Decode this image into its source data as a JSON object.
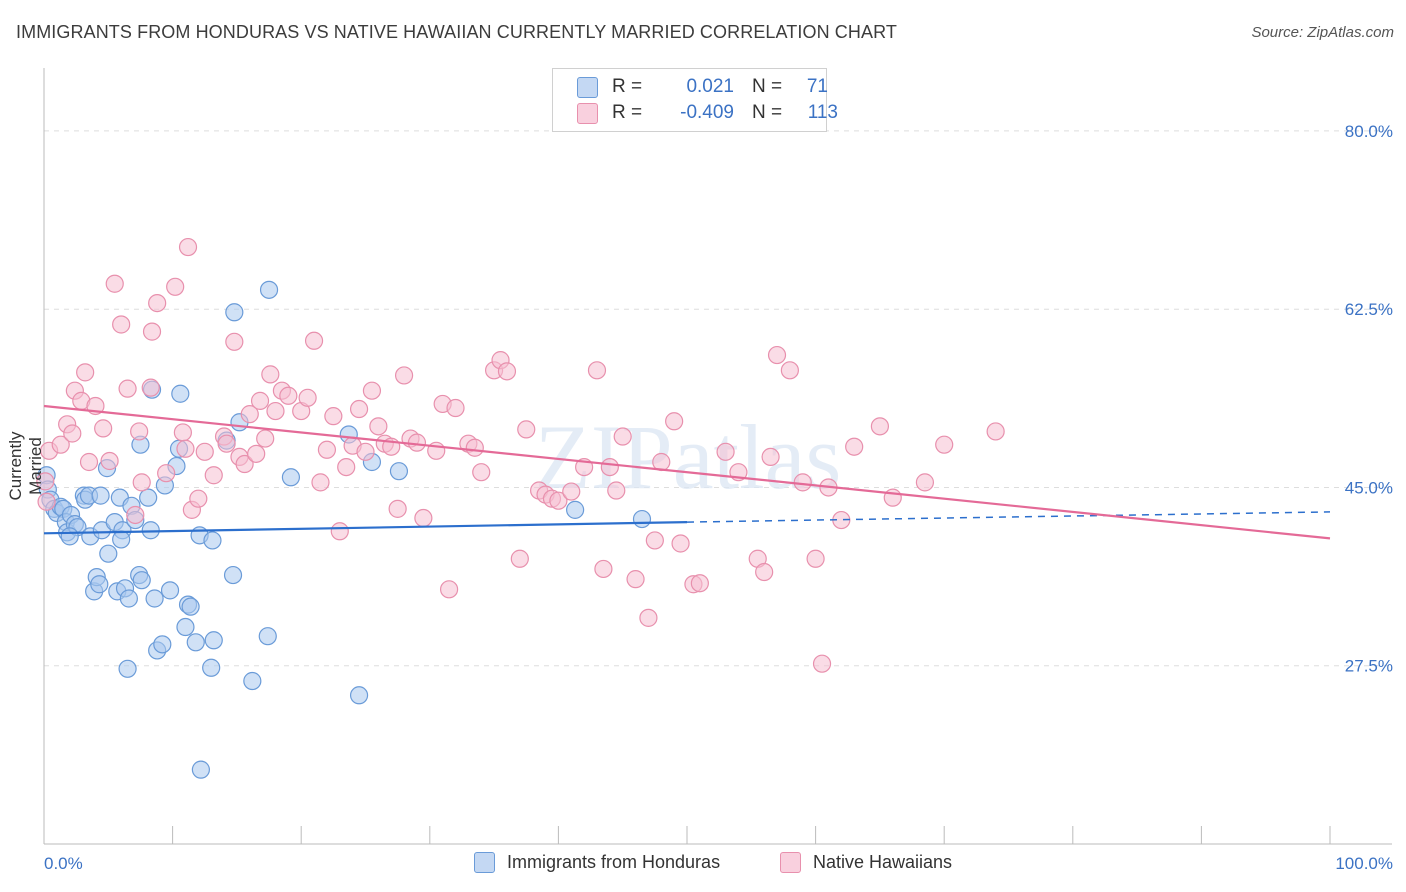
{
  "title": "IMMIGRANTS FROM HONDURAS VS NATIVE HAWAIIAN CURRENTLY MARRIED CORRELATION CHART",
  "source": "Source: ZipAtlas.com",
  "watermark": "ZIPatlas",
  "legend": {
    "rows": [
      {
        "r_label": "R =",
        "r_value": "0.021",
        "n_label": "N =",
        "n_value": "71"
      },
      {
        "r_label": "R =",
        "r_value": "-0.409",
        "n_label": "N =",
        "n_value": "113"
      }
    ]
  },
  "bottom_legend": [
    "Immigrants from Honduras",
    "Native Hawaiians"
  ],
  "colors": {
    "blue_fill": "#aac8ee",
    "blue_stroke": "#6a9bd8",
    "blue_line": "#2c6fcd",
    "pink_fill": "#f6c0d1",
    "pink_stroke": "#e890ad",
    "pink_line": "#e46a97",
    "tick_text": "#3b72c4",
    "grid": "#dddddd"
  },
  "chart_data": {
    "type": "scatter",
    "xlabel": "",
    "ylabel": "Currently Married",
    "xlim": [
      0,
      100
    ],
    "ylim": [
      10,
      85
    ],
    "x_tick_labels": [
      "0.0%",
      "100.0%"
    ],
    "y_ticks": [
      27.5,
      45.0,
      62.5,
      80.0
    ],
    "y_tick_labels": [
      "27.5%",
      "45.0%",
      "62.5%",
      "80.0%"
    ],
    "grid": true,
    "series": [
      {
        "name": "Immigrants from Honduras",
        "trend": {
          "x_start": 0,
          "y_start": 40.5,
          "x_end": 50,
          "y_end": 41.6,
          "dashed_to_x": 100,
          "dashed_end_y": 42.6
        },
        "points": [
          [
            0.2,
            46.2
          ],
          [
            0.3,
            44.8
          ],
          [
            0.5,
            43.8
          ],
          [
            0.8,
            42.9
          ],
          [
            1.0,
            42.5
          ],
          [
            1.3,
            43.1
          ],
          [
            1.5,
            42.9
          ],
          [
            1.7,
            41.6
          ],
          [
            1.8,
            40.6
          ],
          [
            2.1,
            42.3
          ],
          [
            2.4,
            41.4
          ],
          [
            2.6,
            41.1
          ],
          [
            3.1,
            44.2
          ],
          [
            3.2,
            43.8
          ],
          [
            3.5,
            44.2
          ],
          [
            3.6,
            40.2
          ],
          [
            3.9,
            34.8
          ],
          [
            4.1,
            36.2
          ],
          [
            4.3,
            35.5
          ],
          [
            4.5,
            40.8
          ],
          [
            4.9,
            46.9
          ],
          [
            5.0,
            38.5
          ],
          [
            5.5,
            41.6
          ],
          [
            5.7,
            34.8
          ],
          [
            5.9,
            44.0
          ],
          [
            6.1,
            40.8
          ],
          [
            6.3,
            35.1
          ],
          [
            6.5,
            27.2
          ],
          [
            6.6,
            34.1
          ],
          [
            6.8,
            43.2
          ],
          [
            7.1,
            41.8
          ],
          [
            7.4,
            36.4
          ],
          [
            7.5,
            49.2
          ],
          [
            7.6,
            35.9
          ],
          [
            8.1,
            44.0
          ],
          [
            8.3,
            40.8
          ],
          [
            8.4,
            54.6
          ],
          [
            8.6,
            34.1
          ],
          [
            8.8,
            29.0
          ],
          [
            9.2,
            29.6
          ],
          [
            9.4,
            45.2
          ],
          [
            9.8,
            34.9
          ],
          [
            10.3,
            47.1
          ],
          [
            10.5,
            48.8
          ],
          [
            10.6,
            54.2
          ],
          [
            11.0,
            31.3
          ],
          [
            11.2,
            33.5
          ],
          [
            11.4,
            33.3
          ],
          [
            11.8,
            29.8
          ],
          [
            12.1,
            40.3
          ],
          [
            12.2,
            17.3
          ],
          [
            13.0,
            27.3
          ],
          [
            13.1,
            39.8
          ],
          [
            13.2,
            30.0
          ],
          [
            14.2,
            49.6
          ],
          [
            14.7,
            36.4
          ],
          [
            14.8,
            62.2
          ],
          [
            15.2,
            51.4
          ],
          [
            16.2,
            26.0
          ],
          [
            17.4,
            30.4
          ],
          [
            17.5,
            64.4
          ],
          [
            19.2,
            46.0
          ],
          [
            23.7,
            50.2
          ],
          [
            24.5,
            24.6
          ],
          [
            25.5,
            47.5
          ],
          [
            27.6,
            46.6
          ],
          [
            41.3,
            42.8
          ],
          [
            46.5,
            41.9
          ],
          [
            4.4,
            44.2
          ],
          [
            2.0,
            40.2
          ],
          [
            6.0,
            39.9
          ]
        ]
      },
      {
        "name": "Native Hawaiians",
        "trend": {
          "x_start": 0,
          "y_start": 53.0,
          "x_end": 100,
          "y_end": 40.0
        },
        "points": [
          [
            0.1,
            45.6
          ],
          [
            0.2,
            43.6
          ],
          [
            0.4,
            48.6
          ],
          [
            1.3,
            49.2
          ],
          [
            1.8,
            51.2
          ],
          [
            2.2,
            50.3
          ],
          [
            2.4,
            54.5
          ],
          [
            2.9,
            53.5
          ],
          [
            3.2,
            56.3
          ],
          [
            3.5,
            47.5
          ],
          [
            4.0,
            53.0
          ],
          [
            4.6,
            50.8
          ],
          [
            5.1,
            47.6
          ],
          [
            5.5,
            65.0
          ],
          [
            6.0,
            61.0
          ],
          [
            6.5,
            54.7
          ],
          [
            7.1,
            42.3
          ],
          [
            7.4,
            50.5
          ],
          [
            7.6,
            45.5
          ],
          [
            8.3,
            54.8
          ],
          [
            8.4,
            60.3
          ],
          [
            8.8,
            63.1
          ],
          [
            9.5,
            46.4
          ],
          [
            10.2,
            64.7
          ],
          [
            10.8,
            50.4
          ],
          [
            11.0,
            48.8
          ],
          [
            11.2,
            68.6
          ],
          [
            11.5,
            42.8
          ],
          [
            12.0,
            43.9
          ],
          [
            12.5,
            48.5
          ],
          [
            13.2,
            46.2
          ],
          [
            14.0,
            50.0
          ],
          [
            14.2,
            49.3
          ],
          [
            14.8,
            59.3
          ],
          [
            15.2,
            48.0
          ],
          [
            15.6,
            47.3
          ],
          [
            16.0,
            52.2
          ],
          [
            16.5,
            48.3
          ],
          [
            16.8,
            53.5
          ],
          [
            17.2,
            49.8
          ],
          [
            17.6,
            56.1
          ],
          [
            18.0,
            52.5
          ],
          [
            18.5,
            54.5
          ],
          [
            19.0,
            54.0
          ],
          [
            20.0,
            52.5
          ],
          [
            20.5,
            53.8
          ],
          [
            21.0,
            59.4
          ],
          [
            21.5,
            45.5
          ],
          [
            22.0,
            48.7
          ],
          [
            22.5,
            52.0
          ],
          [
            23.0,
            40.7
          ],
          [
            23.5,
            47.0
          ],
          [
            24.0,
            49.1
          ],
          [
            24.5,
            52.7
          ],
          [
            25.0,
            48.5
          ],
          [
            25.5,
            54.5
          ],
          [
            26.0,
            51.0
          ],
          [
            26.5,
            49.3
          ],
          [
            27.0,
            49.0
          ],
          [
            27.5,
            42.9
          ],
          [
            28.0,
            56.0
          ],
          [
            28.5,
            49.8
          ],
          [
            29.0,
            49.4
          ],
          [
            29.5,
            42.0
          ],
          [
            30.5,
            48.6
          ],
          [
            31.0,
            53.2
          ],
          [
            31.5,
            35.0
          ],
          [
            32.0,
            52.8
          ],
          [
            33.0,
            49.3
          ],
          [
            33.5,
            48.9
          ],
          [
            34.0,
            46.5
          ],
          [
            35.0,
            56.5
          ],
          [
            35.5,
            57.5
          ],
          [
            36.0,
            56.4
          ],
          [
            37.0,
            38.0
          ],
          [
            37.5,
            50.7
          ],
          [
            38.5,
            44.7
          ],
          [
            39.0,
            44.3
          ],
          [
            39.5,
            43.9
          ],
          [
            40.0,
            43.7
          ],
          [
            41.0,
            44.6
          ],
          [
            42.0,
            47.0
          ],
          [
            43.0,
            56.5
          ],
          [
            43.5,
            37.0
          ],
          [
            44.0,
            47.0
          ],
          [
            44.5,
            44.7
          ],
          [
            45.0,
            50.0
          ],
          [
            46.0,
            36.0
          ],
          [
            47.0,
            32.2
          ],
          [
            47.5,
            39.8
          ],
          [
            48.0,
            47.5
          ],
          [
            49.0,
            51.5
          ],
          [
            49.5,
            39.5
          ],
          [
            50.5,
            35.5
          ],
          [
            51.0,
            35.6
          ],
          [
            53.0,
            48.5
          ],
          [
            54.0,
            46.5
          ],
          [
            55.5,
            38.0
          ],
          [
            56.0,
            36.7
          ],
          [
            56.5,
            48.0
          ],
          [
            57.0,
            58.0
          ],
          [
            58.0,
            56.5
          ],
          [
            59.0,
            45.5
          ],
          [
            60.0,
            38.0
          ],
          [
            60.5,
            27.7
          ],
          [
            61.0,
            45.0
          ],
          [
            62.0,
            41.8
          ],
          [
            63.0,
            49.0
          ],
          [
            65.0,
            51.0
          ],
          [
            66.0,
            44.0
          ],
          [
            68.5,
            45.5
          ],
          [
            70.0,
            49.2
          ],
          [
            74.0,
            50.5
          ]
        ]
      }
    ]
  }
}
